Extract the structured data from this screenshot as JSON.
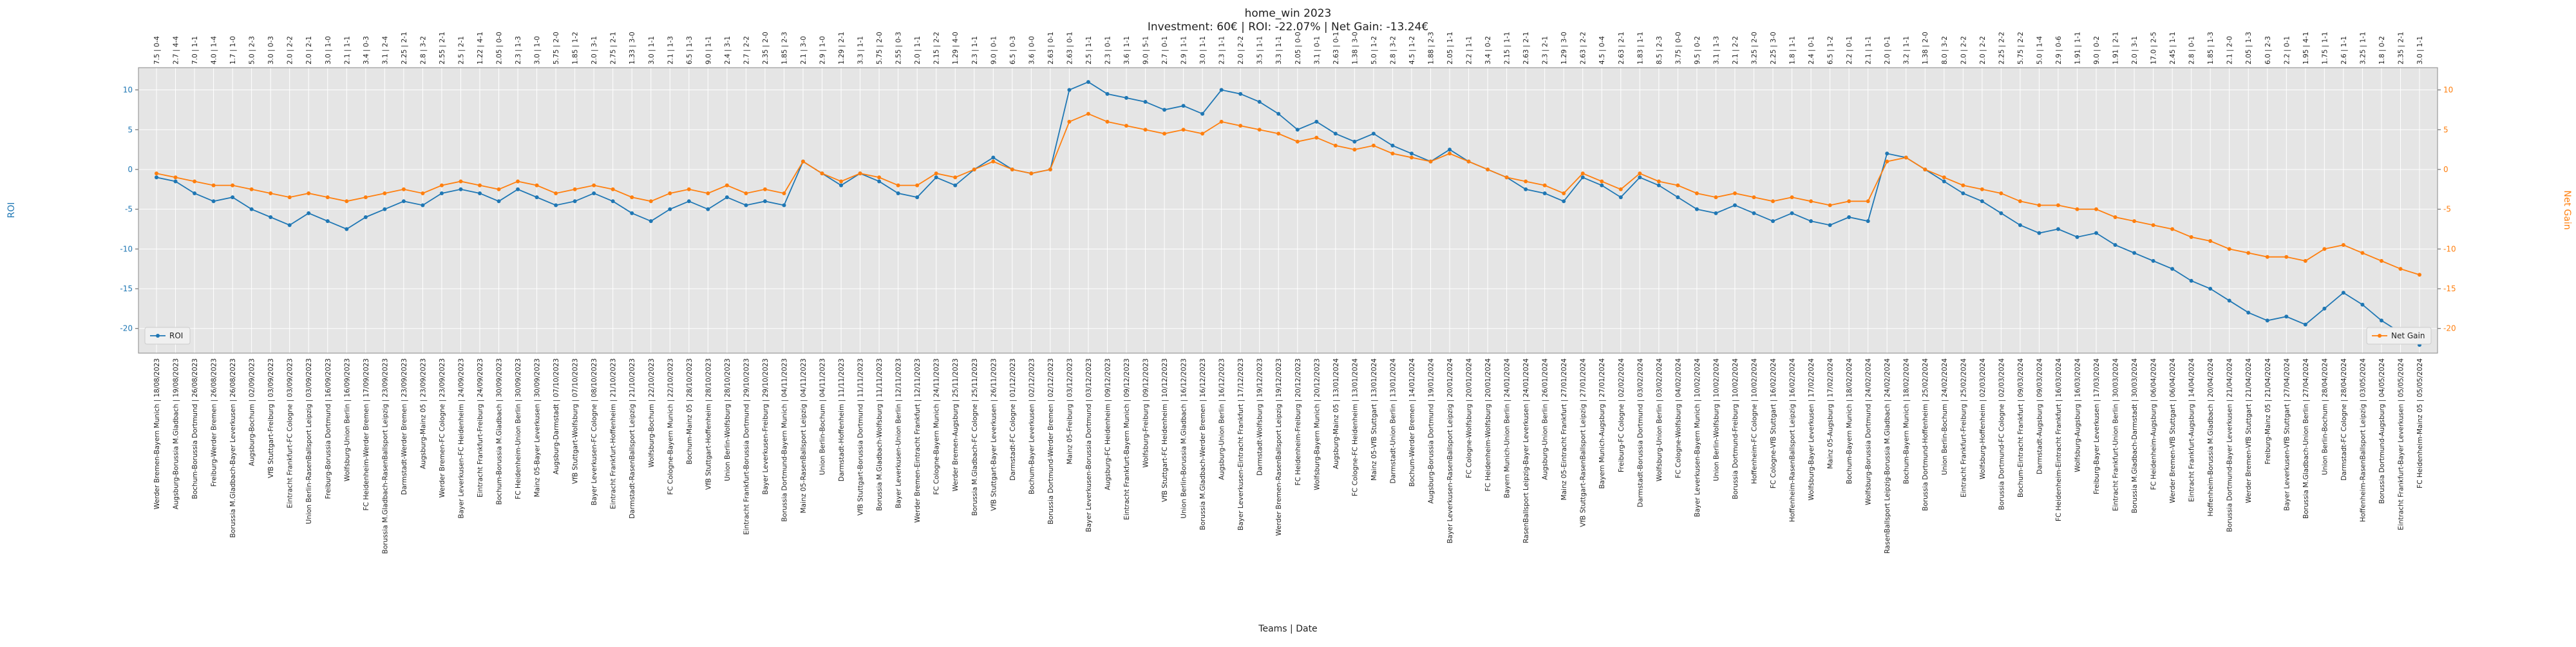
{
  "chart_data": {
    "type": "line",
    "title": "home_win 2023",
    "subtitle": "Investment: 60€ | ROI: -22.07% | Net Gain: -13.24€",
    "xlabel": "Teams | Date",
    "ylabel": "ROI",
    "y2label": "Net Gain",
    "ylim": [
      -23.1,
      12.8
    ],
    "yticks": [
      -20,
      -15,
      -10,
      -5,
      0,
      5,
      10
    ],
    "y2lim": [
      -23.1,
      12.8
    ],
    "y2ticks": [
      -20,
      -15,
      -10,
      -5,
      0,
      5,
      10
    ],
    "grid": true,
    "legend": "lower left",
    "legend2": "lower right",
    "categories": [
      "Werder Bremen-Bayern Munich | 18/08/2023",
      "Augsburg-Borussia M.Gladbach | 19/08/2023",
      "Bochum-Borussia Dortmund | 26/08/2023",
      "Freiburg-Werder Bremen | 26/08/2023",
      "Borussia M.Gladbach-Bayer Leverkusen | 26/08/2023",
      "Augsburg-Bochum | 02/09/2023",
      "VfB Stuttgart-Freiburg | 03/09/2023",
      "Eintracht Frankfurt-FC Cologne | 03/09/2023",
      "Union Berlin-RasenBallsport Leipzig | 03/09/2023",
      "Freiburg-Borussia Dortmund | 16/09/2023",
      "Wolfsburg-Union Berlin | 16/09/2023",
      "FC Heidenheim-Werder Bremen | 17/09/2023",
      "Borussia M.Gladbach-RasenBallsport Leipzig | 23/09/2023",
      "Darmstadt-Werder Bremen | 23/09/2023",
      "Augsburg-Mainz 05 | 23/09/2023",
      "Werder Bremen-FC Cologne | 23/09/2023",
      "Bayer Leverkusen-FC Heidenheim | 24/09/2023",
      "Eintracht Frankfurt-Freiburg | 24/09/2023",
      "Bochum-Borussia M.Gladbach | 30/09/2023",
      "FC Heidenheim-Union Berlin | 30/09/2023",
      "Mainz 05-Bayer Leverkusen | 30/09/2023",
      "Augsburg-Darmstadt | 07/10/2023",
      "VfB Stuttgart-Wolfsburg | 07/10/2023",
      "Bayer Leverkusen-FC Cologne | 08/10/2023",
      "Eintracht Frankfurt-Hoffenheim | 21/10/2023",
      "Darmstadt-RasenBallsport Leipzig | 21/10/2023",
      "Wolfsburg-Bochum | 22/10/2023",
      "FC Cologne-Bayern Munich | 22/10/2023",
      "Bochum-Mainz 05 | 28/10/2023",
      "VfB Stuttgart-Hoffenheim | 28/10/2023",
      "Union Berlin-Wolfsburg | 28/10/2023",
      "Eintracht Frankfurt-Borussia Dortmund | 29/10/2023",
      "Bayer Leverkusen-Freiburg | 29/10/2023",
      "Borussia Dortmund-Bayern Munich | 04/11/2023",
      "Mainz 05-RasenBallsport Leipzig | 04/11/2023",
      "Union Berlin-Bochum | 04/11/2023",
      "Darmstadt-Hoffenheim | 11/11/2023",
      "VfB Stuttgart-Borussia Dortmund | 11/11/2023",
      "Borussia M.Gladbach-Wolfsburg | 11/11/2023",
      "Bayer Leverkusen-Union Berlin | 12/11/2023",
      "Werder Bremen-Eintracht Frankfurt | 12/11/2023",
      "FC Cologne-Bayern Munich | 24/11/2023",
      "Werder Bremen-Augsburg | 25/11/2023",
      "Borussia M.Gladbach-FC Cologne | 25/11/2023",
      "VfB Stuttgart-Bayer Leverkusen | 26/11/2023",
      "Darmstadt-FC Cologne | 01/12/2023",
      "Bochum-Bayer Leverkusen | 02/12/2023",
      "Borussia Dortmund-Werder Bremen | 02/12/2023",
      "Mainz 05-Freiburg | 03/12/2023",
      "Bayer Leverkusen-Borussia Dortmund | 03/12/2023",
      "Augsburg-FC Heidenheim | 09/12/2023",
      "Eintracht Frankfurt-Bayern Munich | 09/12/2023",
      "Wolfsburg-Freiburg | 09/12/2023",
      "VfB Stuttgart-FC Heidenheim | 10/12/2023",
      "Union Berlin-Borussia M.Gladbach | 16/12/2023",
      "Borussia M.Gladbach-Werder Bremen | 16/12/2023",
      "Augsburg-Union Berlin | 16/12/2023",
      "Bayer Leverkusen-Eintracht Frankfurt | 17/12/2023",
      "Darmstadt-Wolfsburg | 19/12/2023",
      "Werder Bremen-RasenBallsport Leipzig | 19/12/2023",
      "FC Heidenheim-Freiburg | 20/12/2023",
      "Wolfsburg-Bayern Munich | 20/12/2023",
      "Augsburg-Mainz 05 | 13/01/2024",
      "FC Cologne-FC Heidenheim | 13/01/2024",
      "Mainz 05-VfB Stuttgart | 13/01/2024",
      "Darmstadt-Union Berlin | 13/01/2024",
      "Bochum-Werder Bremen | 14/01/2024",
      "Augsburg-Borussia Dortmund | 19/01/2024",
      "Bayer Leverkusen-RasenBallsport Leipzig | 20/01/2024",
      "FC Cologne-Wolfsburg | 20/01/2024",
      "FC Heidenheim-Wolfsburg | 20/01/2024",
      "Bayern Munich-Union Berlin | 24/01/2024",
      "RasenBallsport Leipzig-Bayer Leverkusen | 24/01/2024",
      "Augsburg-Union Berlin | 26/01/2024",
      "Mainz 05-Eintracht Frankfurt | 27/01/2024",
      "VfB Stuttgart-RasenBallsport Leipzig | 27/01/2024",
      "Bayern Munich-Augsburg | 27/01/2024",
      "Freiburg-FC Cologne | 02/02/2024",
      "Darmstadt-Borussia Dortmund | 03/02/2024",
      "Wolfsburg-Union Berlin | 03/02/2024",
      "FC Cologne-Wolfsburg | 04/02/2024",
      "Bayer Leverkusen-Bayern Munich | 10/02/2024",
      "Union Berlin-Wolfsburg | 10/02/2024",
      "Borussia Dortmund-Freiburg | 10/02/2024",
      "Hoffenheim-FC Cologne | 10/02/2024",
      "FC Cologne-VfB Stuttgart | 16/02/2024",
      "Hoffenheim-RasenBallsport Leipzig | 16/02/2024",
      "Wolfsburg-Bayer Leverkusen | 17/02/2024",
      "Mainz 05-Augsburg | 17/02/2024",
      "Bochum-Bayern Munich | 18/02/2024",
      "Wolfsburg-Borussia Dortmund | 24/02/2024",
      "RasenBallsport Leipzig-Borussia M.Gladbach | 24/02/2024",
      "Bochum-Bayern Munich | 18/02/2024",
      "Borussia Dortmund-Hoffenheim | 25/02/2024",
      "Union Berlin-Bochum | 24/02/2024",
      "Eintracht Frankfurt-Freiburg | 25/02/2024",
      "Wolfsburg-Hoffenheim | 02/03/2024",
      "Borussia Dortmund-FC Cologne | 02/03/2024",
      "Bochum-Eintracht Frankfurt | 09/03/2024",
      "Darmstadt-Augsburg | 09/03/2024",
      "FC Heidenheim-Eintracht Frankfurt | 16/03/2024",
      "Wolfsburg-Augsburg | 16/03/2024",
      "Freiburg-Bayer Leverkusen | 17/03/2024",
      "Eintracht Frankfurt-Union Berlin | 30/03/2024",
      "Borussia M.Gladbach-Darmstadt | 30/03/2024",
      "FC Heidenheim-Augsburg | 06/04/2024",
      "Werder Bremen-VfB Stuttgart | 06/04/2024",
      "Eintracht Frankfurt-Augsburg | 14/04/2024",
      "Hoffenheim-Borussia M.Gladbach | 20/04/2024",
      "Borussia Dortmund-Bayer Leverkusen | 21/04/2024",
      "Werder Bremen-VfB Stuttgart | 21/04/2024",
      "Freiburg-Mainz 05 | 21/04/2024",
      "Bayer Leverkusen-VfB Stuttgart | 27/04/2024",
      "Borussia M.Gladbach-Union Berlin | 27/04/2024",
      "Union Berlin-Bochum | 28/04/2024",
      "Darmstadt-FC Cologne | 28/04/2024",
      "Hoffenheim-RasenBallsport Leipzig | 03/05/2024",
      "Borussia Dortmund-Augsburg | 04/05/2024",
      "Eintracht Frankfurt-Bayer Leverkusen | 05/05/2024",
      "FC Heidenheim-Mainz 05 | 05/05/2024"
    ],
    "top_labels": [
      "7.5 | 0-4",
      "2.7 | 4-4",
      "7.0 | 1-1",
      "4.0 | 1-4",
      "1.7 | 1-0",
      "5.0 | 2-3",
      "3.0 | 0-3",
      "2.0 | 2-2",
      "2.0 | 2-1",
      "3.0 | 1-0",
      "2.1 | 1-1",
      "3.4 | 0-3",
      "3.1 | 2-4",
      "2.25 | 2-1",
      "2.8 | 3-2",
      "2.55 | 2-1",
      "2.5 | 2-1",
      "1.22 | 4-1",
      "2.05 | 0-0",
      "2.3 | 1-3",
      "3.0 | 1-0",
      "5.75 | 2-0",
      "1.85 | 1-2",
      "2.0 | 3-1",
      "2.75 | 2-1",
      "1.33 | 3-0",
      "3.0 | 1-1",
      "2.1 | 1-3",
      "6.5 | 1-3",
      "9.0 | 1-1",
      "2.4 | 3-1",
      "2.7 | 2-2",
      "2.35 | 2-0",
      "1.85 | 2-3",
      "2.1 | 3-0",
      "2.9 | 1-0",
      "1.29 | 2-1",
      "3.3 | 1-1",
      "5.75 | 2-0",
      "2.55 | 0-3",
      "2.0 | 1-1",
      "2.15 | 2-2",
      "1.29 | 4-0",
      "2.3 | 1-1",
      "9.0 | 0-1",
      "6.5 | 0-3",
      "3.6 | 0-0",
      "2.63 | 0-1",
      "2.63 | 0-1",
      "2.5 | 1-1",
      "2.3 | 0-1",
      "3.6 | 1-1",
      "9.0 | 5-1",
      "2.7 | 0-1",
      "2.9 | 1-1",
      "3.0 | 1-1",
      "2.3 | 1-1",
      "2.0 | 2-2",
      "3.5 | 1-1",
      "3.3 | 1-1",
      "2.05 | 0-0",
      "3.1 | 0-1",
      "2.63 | 0-1",
      "1.38 | 3-0",
      "5.0 | 1-2",
      "2.8 | 3-2",
      "4.5 | 1-2",
      "1.88 | 2-3",
      "2.05 | 1-1",
      "2.2 | 1-1",
      "3.4 | 0-2",
      "2.15 | 1-1",
      "2.63 | 2-1",
      "2.3 | 2-1",
      "1.29 | 3-0",
      "2.63 | 2-2",
      "4.5 | 0-4",
      "2.63 | 2-1",
      "1.83 | 1-1",
      "8.5 | 2-3",
      "3.75 | 0-0",
      "9.5 | 0-2",
      "3.1 | 1-3",
      "2.1 | 2-2",
      "3.25 | 2-0",
      "2.25 | 3-0",
      "1.8 | 1-1",
      "2.4 | 0-1",
      "6.5 | 1-2",
      "2.2 | 0-1",
      "2.1 | 1-1",
      "2.0 | 0-1",
      "3.2 | 1-1",
      "1.38 | 2-0",
      "8.0 | 3-2",
      "2.0 | 2-2",
      "2.0 | 2-2",
      "2.25 | 2-2",
      "5.75 | 2-2",
      "5.0 | 1-4",
      "2.9 | 0-6",
      "1.91 | 1-1",
      "9.0 | 0-2",
      "1.91 | 2-1",
      "2.0 | 3-1",
      "17.0 | 2-5",
      "2.45 | 1-1",
      "2.8 | 0-1",
      "1.85 | 1-3",
      "2.1 | 2-0",
      "2.05 | 1-3",
      "6.0 | 2-3",
      "2.2 | 0-1",
      "1.95 | 4-1",
      "1.75 | 1-1",
      "2.6 | 1-1",
      "3.25 | 1-1",
      "1.8 | 0-2",
      "2.35 | 2-1",
      "3.0 | 1-1"
    ],
    "series": [
      {
        "name": "ROI",
        "color": "#1f77b4",
        "values": [
          -1,
          -1.5,
          -3,
          -4,
          -3.5,
          -5,
          -6,
          -7,
          -5.5,
          -6.5,
          -7.5,
          -6,
          -5,
          -4,
          -4.5,
          -3,
          -2.5,
          -3,
          -4,
          -2.5,
          -3.5,
          -4.5,
          -4,
          -3,
          -4,
          -5.5,
          -6.5,
          -5,
          -4,
          -5,
          -3.5,
          -4.5,
          -4,
          -4.5,
          1,
          -0.5,
          -2,
          -0.5,
          -1.5,
          -3,
          -3.5,
          -1,
          -2,
          0,
          1.5,
          0,
          -0.5,
          0,
          10,
          11,
          9.5,
          9,
          8.5,
          7.5,
          8,
          7,
          10,
          9.5,
          8.5,
          7,
          5,
          6,
          4.5,
          3.5,
          4.5,
          3,
          2,
          1,
          2.5,
          1,
          0,
          -1,
          -2.5,
          -3,
          -4,
          -1,
          -2,
          -3.5,
          -1,
          -2,
          -3.5,
          -5,
          -5.5,
          -4.5,
          -5.5,
          -6.5,
          -5.5,
          -6.5,
          -7,
          -6,
          -6.5,
          2,
          1.5,
          0,
          -1.5,
          -3,
          -4,
          -5.5,
          -7,
          -8,
          -7.5,
          -8.5,
          -8,
          -9.5,
          -10.5,
          -11.5,
          -12.5,
          -14,
          -15,
          -16.5,
          -18,
          -19,
          -18.5,
          -19.5,
          -17.5,
          -15.5,
          -17,
          -19,
          -20.5,
          -22.07
        ]
      },
      {
        "name": "Net Gain",
        "color": "#ff7f0e",
        "axis": "y2",
        "values": [
          -0.5,
          -1,
          -1.5,
          -2,
          -2,
          -2.5,
          -3,
          -3.5,
          -3,
          -3.5,
          -4,
          -3.5,
          -3,
          -2.5,
          -3,
          -2,
          -1.5,
          -2,
          -2.5,
          -1.5,
          -2,
          -3,
          -2.5,
          -2,
          -2.5,
          -3.5,
          -4,
          -3,
          -2.5,
          -3,
          -2,
          -3,
          -2.5,
          -3,
          1,
          -0.5,
          -1.5,
          -0.5,
          -1,
          -2,
          -2,
          -0.5,
          -1,
          0,
          1,
          0,
          -0.5,
          0,
          6,
          7,
          6,
          5.5,
          5,
          4.5,
          5,
          4.5,
          6,
          5.5,
          5,
          4.5,
          3.5,
          4,
          3,
          2.5,
          3,
          2,
          1.5,
          1,
          2,
          1,
          0,
          -1,
          -1.5,
          -2,
          -3,
          -0.5,
          -1.5,
          -2.5,
          -0.5,
          -1.5,
          -2,
          -3,
          -3.5,
          -3,
          -3.5,
          -4,
          -3.5,
          -4,
          -4.5,
          -4,
          -4,
          1,
          1.5,
          0,
          -1,
          -2,
          -2.5,
          -3,
          -4,
          -4.5,
          -4.5,
          -5,
          -5,
          -6,
          -6.5,
          -7,
          -7.5,
          -8.5,
          -9,
          -10,
          -10.5,
          -11,
          -11,
          -11.5,
          -10,
          -9.5,
          -10.5,
          -11.5,
          -12.5,
          -13.24
        ]
      }
    ]
  }
}
